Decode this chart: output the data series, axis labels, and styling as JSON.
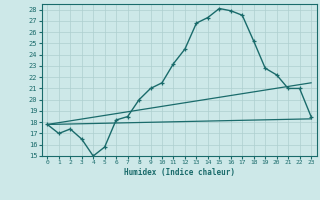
{
  "xlabel": "Humidex (Indice chaleur)",
  "ylabel": "",
  "xlim": [
    -0.5,
    23.5
  ],
  "ylim": [
    15,
    28.5
  ],
  "xticks": [
    0,
    1,
    2,
    3,
    4,
    5,
    6,
    7,
    8,
    9,
    10,
    11,
    12,
    13,
    14,
    15,
    16,
    17,
    18,
    19,
    20,
    21,
    22,
    23
  ],
  "yticks": [
    15,
    16,
    17,
    18,
    19,
    20,
    21,
    22,
    23,
    24,
    25,
    26,
    27,
    28
  ],
  "bg_color": "#cde8e8",
  "line_color": "#1a6b6b",
  "grid_color": "#aecfcf",
  "line1_x": [
    0,
    1,
    2,
    3,
    4,
    5,
    6,
    7,
    8,
    9,
    10,
    11,
    12,
    13,
    14,
    15,
    16,
    17,
    18,
    19,
    20,
    21,
    22,
    23
  ],
  "line1_y": [
    17.8,
    17.0,
    17.4,
    16.5,
    15.0,
    15.8,
    18.2,
    18.5,
    20.0,
    21.0,
    21.5,
    23.2,
    24.5,
    26.8,
    27.3,
    28.1,
    27.9,
    27.5,
    25.2,
    22.8,
    22.2,
    21.0,
    21.0,
    18.5
  ],
  "line2_x": [
    0,
    23
  ],
  "line2_y": [
    17.8,
    18.3
  ],
  "line3_x": [
    0,
    23
  ],
  "line3_y": [
    17.8,
    21.5
  ],
  "font_family": "monospace"
}
